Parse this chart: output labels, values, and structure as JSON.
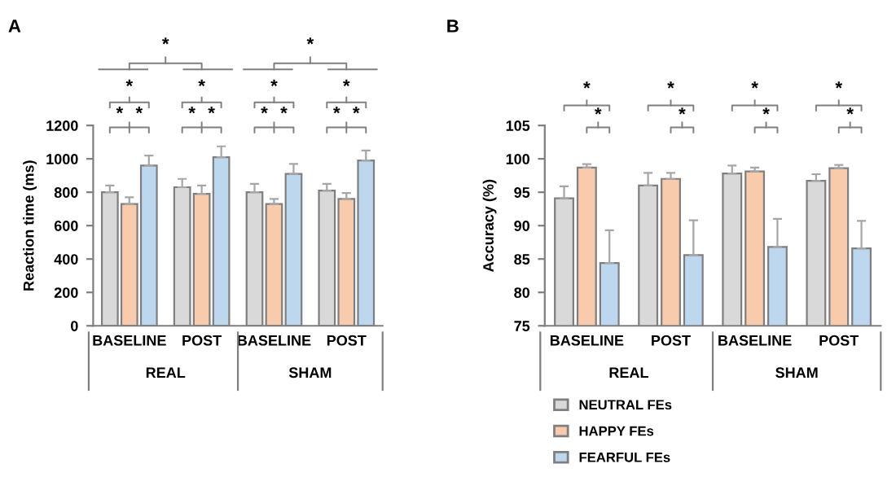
{
  "chart_data": [
    {
      "type": "bar",
      "title": "A",
      "ylabel": "Reaction time (ms)",
      "categories": [
        "BASELINE",
        "POST",
        "BASELINE",
        "POST"
      ],
      "series": [
        {
          "color": "#d9d9d9",
          "values": [
            800,
            830,
            800,
            810
          ],
          "errors": [
            40,
            50,
            50,
            40
          ]
        },
        {
          "color": "#f8cbad",
          "values": [
            730,
            790,
            730,
            760
          ],
          "errors": [
            40,
            50,
            30,
            35
          ]
        },
        {
          "color": "#bdd7ee",
          "values": [
            960,
            1010,
            910,
            990
          ],
          "errors": [
            60,
            65,
            60,
            60
          ]
        }
      ],
      "ylim": [
        0,
        1200
      ],
      "yticks": [
        0,
        200,
        400,
        600,
        800,
        1000,
        1200
      ],
      "grid": false,
      "legend": false,
      "annotations": [
        "REAL",
        "SHAM",
        "*",
        "*",
        "*",
        "*",
        "*",
        "*",
        "*",
        "*",
        "*",
        "*",
        "*",
        "*",
        "*",
        "*"
      ]
    },
    {
      "type": "bar",
      "title": "B",
      "ylabel": "Accuracy (%)",
      "categories": [
        "BASELINE",
        "POST",
        "BASELINE",
        "POST"
      ],
      "series": [
        {
          "name": "NEUTRAL FEs",
          "color": "#d9d9d9",
          "values": [
            94.1,
            96.0,
            97.8,
            96.7
          ],
          "errors": [
            1.8,
            1.9,
            1.2,
            1.0
          ]
        },
        {
          "name": "HAPPY FEs",
          "color": "#f8cbad",
          "values": [
            98.7,
            97.0,
            98.1,
            98.6
          ],
          "errors": [
            0.5,
            0.9,
            0.6,
            0.5
          ]
        },
        {
          "name": "FEARFUL FEs",
          "color": "#bdd7ee",
          "values": [
            84.4,
            85.6,
            86.8,
            86.6
          ],
          "errors": [
            4.9,
            5.2,
            4.2,
            4.1
          ]
        }
      ],
      "ylim": [
        75,
        105
      ],
      "yticks": [
        75,
        80,
        85,
        90,
        95,
        100,
        105
      ],
      "grid": false,
      "legend": "bottom left",
      "annotations": [
        "REAL",
        "SHAM",
        "*",
        "*",
        "*",
        "*",
        "*",
        "*",
        "*",
        "*"
      ]
    }
  ]
}
